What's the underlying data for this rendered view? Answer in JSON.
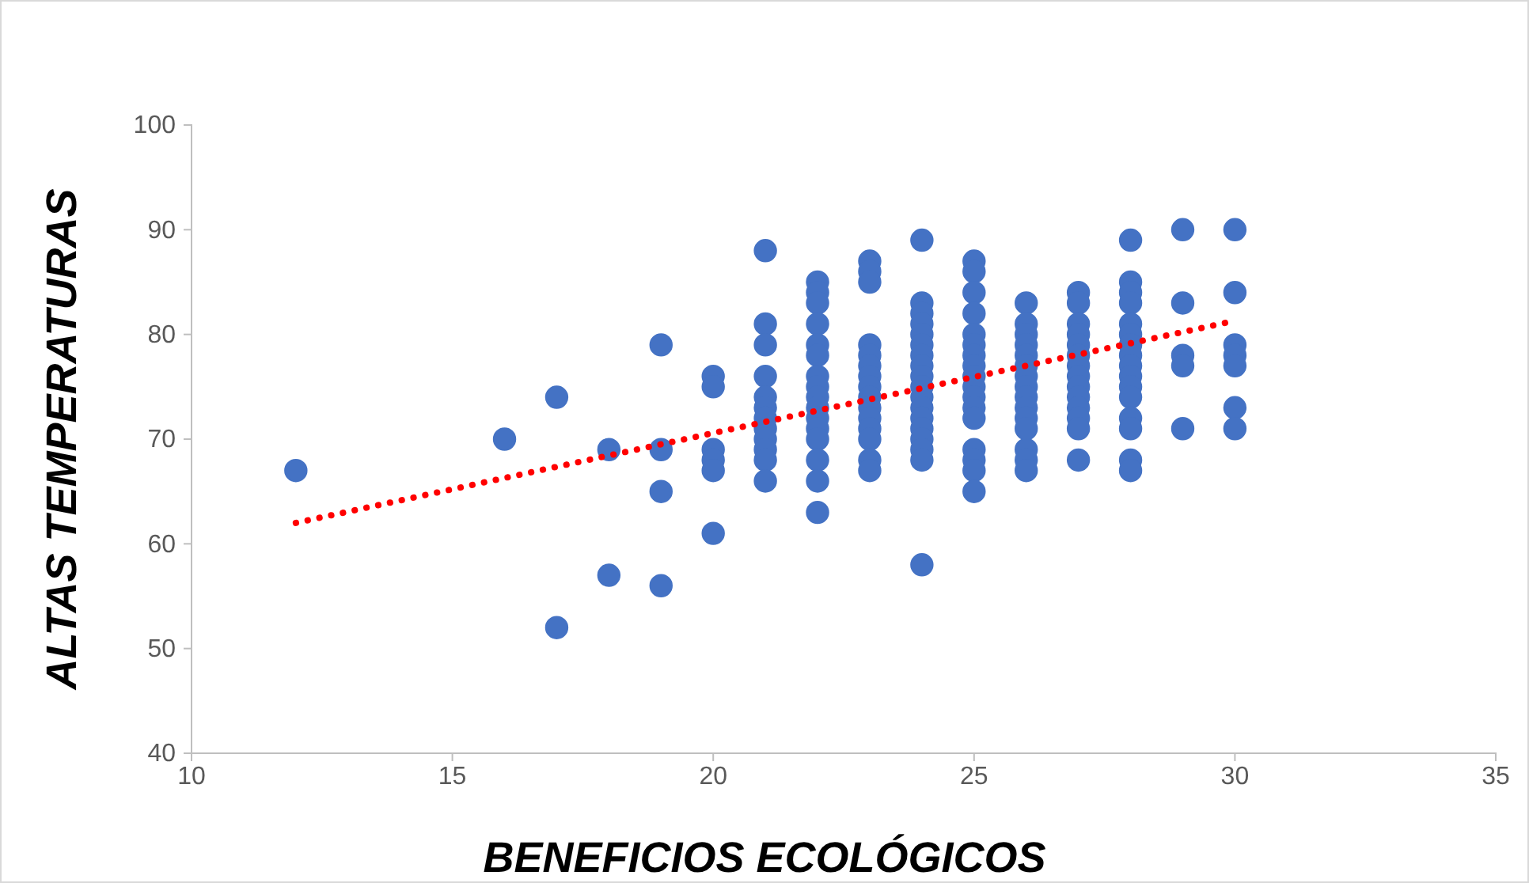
{
  "chart_data": {
    "type": "scatter",
    "xlabel": "BENEFICIOS ECOLÓGICOS",
    "ylabel": "ALTAS TEMPERATURAS",
    "xlim": [
      10,
      35
    ],
    "xticks": [
      10,
      15,
      20,
      25,
      30,
      35
    ],
    "ylim": [
      40,
      100
    ],
    "yticks": [
      40,
      50,
      60,
      70,
      80,
      90,
      100
    ],
    "grid": false,
    "series": [
      {
        "color": "#4472c4",
        "marker": "circle",
        "x": [
          12,
          16,
          17,
          17,
          18,
          18,
          19,
          19,
          19,
          19,
          20,
          20,
          20,
          20,
          20,
          20,
          21,
          21,
          21,
          21,
          21,
          21,
          21,
          21,
          21,
          21,
          21,
          21,
          22,
          22,
          22,
          22,
          22,
          22,
          22,
          22,
          22,
          22,
          22,
          22,
          22,
          22,
          22,
          22,
          23,
          23,
          23,
          23,
          23,
          23,
          23,
          23,
          23,
          23,
          23,
          23,
          23,
          23,
          23,
          24,
          24,
          24,
          24,
          24,
          24,
          24,
          24,
          24,
          24,
          24,
          24,
          24,
          24,
          24,
          24,
          24,
          24,
          25,
          25,
          25,
          25,
          25,
          25,
          25,
          25,
          25,
          25,
          25,
          25,
          25,
          25,
          25,
          25,
          25,
          26,
          26,
          26,
          26,
          26,
          26,
          26,
          26,
          26,
          26,
          26,
          26,
          26,
          26,
          26,
          27,
          27,
          27,
          27,
          27,
          27,
          27,
          27,
          27,
          27,
          27,
          27,
          27,
          27,
          28,
          28,
          28,
          28,
          28,
          28,
          28,
          28,
          28,
          28,
          28,
          28,
          28,
          28,
          28,
          28,
          29,
          29,
          29,
          29,
          29,
          30,
          30,
          30,
          30,
          30,
          30,
          30
        ],
        "values": [
          67,
          70,
          74,
          52,
          69,
          57,
          79,
          69,
          65,
          56,
          76,
          75,
          69,
          68,
          67,
          61,
          88,
          81,
          79,
          76,
          74,
          73,
          72,
          71,
          70,
          69,
          68,
          66,
          85,
          84,
          83,
          81,
          79,
          78,
          76,
          75,
          74,
          73,
          72,
          71,
          70,
          68,
          66,
          63,
          87,
          86,
          85,
          79,
          78,
          77,
          76,
          75,
          74,
          73,
          72,
          71,
          70,
          68,
          67,
          89,
          83,
          82,
          81,
          80,
          79,
          78,
          77,
          76,
          75,
          74,
          73,
          72,
          71,
          70,
          69,
          68,
          58,
          87,
          86,
          84,
          82,
          80,
          79,
          78,
          77,
          76,
          75,
          74,
          73,
          72,
          69,
          68,
          67,
          65,
          83,
          81,
          80,
          79,
          78,
          77,
          76,
          75,
          74,
          73,
          72,
          71,
          69,
          68,
          67,
          84,
          83,
          81,
          80,
          79,
          78,
          77,
          76,
          75,
          74,
          73,
          72,
          71,
          68,
          89,
          85,
          84,
          83,
          81,
          80,
          79,
          78,
          77,
          76,
          75,
          74,
          72,
          71,
          68,
          67,
          90,
          83,
          78,
          77,
          71,
          90,
          84,
          79,
          78,
          77,
          73,
          71
        ]
      },
      {
        "type": "line",
        "color": "#ff0000",
        "line_style": "dotted",
        "marker": "none",
        "x": [
          12,
          30
        ],
        "values": [
          62,
          81.3
        ]
      }
    ]
  }
}
